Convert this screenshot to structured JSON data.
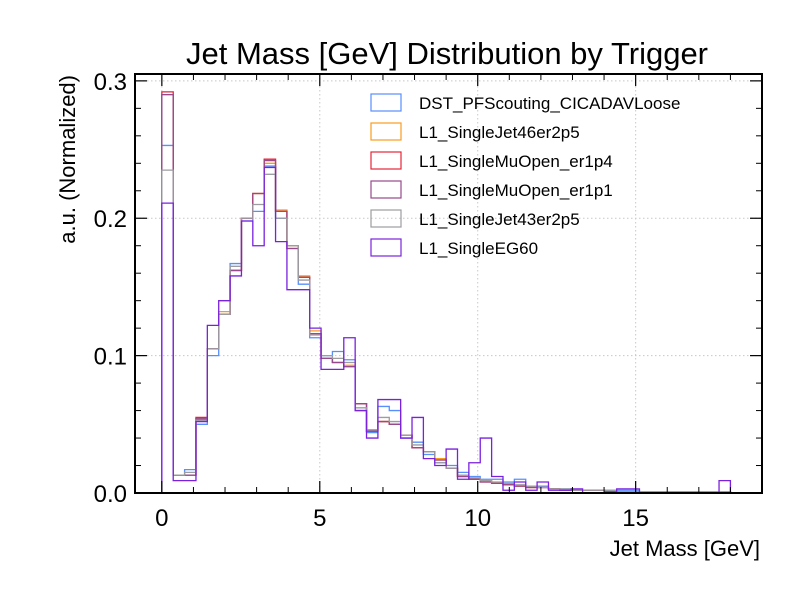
{
  "chart_data": {
    "type": "histogram-step",
    "title": "Jet Mass [GeV] Distribution by Trigger",
    "xlabel": "Jet Mass [GeV]",
    "ylabel": "a.u. (Normalized)",
    "xlim": [
      -0.85,
      19.0
    ],
    "ylim": [
      0.0,
      0.305
    ],
    "xticks": [
      0,
      5,
      10,
      15
    ],
    "xtick_labels": [
      "0",
      "5",
      "10",
      "15"
    ],
    "yticks": [
      0.0,
      0.1,
      0.2,
      0.3
    ],
    "ytick_labels": [
      "0.0",
      "0.1",
      "0.2",
      "0.3"
    ],
    "grid": true,
    "legend_position": "top-right",
    "bin_edges": [
      0.0,
      0.36,
      0.72,
      1.08,
      1.44,
      1.8,
      2.16,
      2.52,
      2.88,
      3.24,
      3.6,
      3.96,
      4.32,
      4.68,
      5.04,
      5.4,
      5.76,
      6.12,
      6.48,
      6.84,
      7.2,
      7.56,
      7.92,
      8.28,
      8.64,
      9.0,
      9.36,
      9.72,
      10.08,
      10.44,
      10.8,
      11.16,
      11.52,
      11.88,
      12.24,
      12.6,
      12.96,
      13.32,
      13.68,
      14.04,
      14.4,
      14.76,
      15.12,
      15.48,
      15.84,
      16.2,
      16.56,
      16.92,
      17.28,
      17.64,
      18.0
    ],
    "series": [
      {
        "name": "DST_PFScouting_CICADAVLoose",
        "color": "#5790fc",
        "values": [
          0.253,
          0.013,
          0.017,
          0.05,
          0.1,
          0.13,
          0.167,
          0.198,
          0.205,
          0.238,
          0.2,
          0.18,
          0.152,
          0.113,
          0.1,
          0.103,
          0.097,
          0.06,
          0.044,
          0.063,
          0.06,
          0.04,
          0.037,
          0.028,
          0.022,
          0.02,
          0.015,
          0.012,
          0.01,
          0.01,
          0.008,
          0.01,
          0.005,
          0.005,
          0.003,
          0.003,
          0.002,
          0.002,
          0.002,
          0.002,
          0.002,
          0.002,
          0.001,
          0.001,
          0.001,
          0.001,
          0.001,
          0.001,
          0.001,
          0.001
        ]
      },
      {
        "name": "L1_SingleJet46er2p5",
        "color": "#f89c20",
        "values": [
          0.29,
          0.013,
          0.013,
          0.054,
          0.105,
          0.132,
          0.162,
          0.2,
          0.218,
          0.24,
          0.206,
          0.18,
          0.158,
          0.118,
          0.098,
          0.095,
          0.093,
          0.065,
          0.045,
          0.052,
          0.05,
          0.042,
          0.033,
          0.03,
          0.025,
          0.018,
          0.012,
          0.01,
          0.009,
          0.007,
          0.006,
          0.005,
          0.004,
          0.004,
          0.003,
          0.002,
          0.002,
          0.002,
          0.002,
          0.001,
          0.001,
          0.001,
          0.001,
          0.001,
          0.001,
          0.001,
          0.001,
          0.001,
          0.001,
          0.001
        ]
      },
      {
        "name": "L1_SingleMuOpen_er1p4",
        "color": "#e42536",
        "values": [
          0.292,
          0.013,
          0.013,
          0.055,
          0.105,
          0.13,
          0.162,
          0.2,
          0.218,
          0.243,
          0.205,
          0.178,
          0.157,
          0.116,
          0.098,
          0.095,
          0.092,
          0.065,
          0.045,
          0.052,
          0.05,
          0.042,
          0.033,
          0.03,
          0.024,
          0.018,
          0.012,
          0.01,
          0.008,
          0.007,
          0.006,
          0.005,
          0.004,
          0.004,
          0.003,
          0.002,
          0.002,
          0.002,
          0.002,
          0.001,
          0.001,
          0.001,
          0.001,
          0.001,
          0.001,
          0.001,
          0.001,
          0.001,
          0.001,
          0.001
        ]
      },
      {
        "name": "L1_SingleMuOpen_er1p1",
        "color": "#964a8b",
        "values": [
          0.29,
          0.013,
          0.013,
          0.054,
          0.105,
          0.13,
          0.162,
          0.2,
          0.218,
          0.242,
          0.205,
          0.178,
          0.157,
          0.116,
          0.098,
          0.095,
          0.092,
          0.065,
          0.045,
          0.052,
          0.05,
          0.042,
          0.033,
          0.03,
          0.024,
          0.018,
          0.012,
          0.01,
          0.008,
          0.007,
          0.006,
          0.005,
          0.004,
          0.004,
          0.003,
          0.002,
          0.002,
          0.002,
          0.002,
          0.001,
          0.001,
          0.001,
          0.001,
          0.001,
          0.001,
          0.001,
          0.001,
          0.001,
          0.001,
          0.001
        ]
      },
      {
        "name": "L1_SingleJet43er2p5",
        "color": "#9c9ca1",
        "values": [
          0.235,
          0.013,
          0.015,
          0.053,
          0.105,
          0.13,
          0.165,
          0.2,
          0.21,
          0.232,
          0.2,
          0.18,
          0.155,
          0.115,
          0.1,
          0.098,
          0.095,
          0.062,
          0.046,
          0.055,
          0.052,
          0.042,
          0.035,
          0.03,
          0.022,
          0.018,
          0.013,
          0.011,
          0.009,
          0.008,
          0.007,
          0.006,
          0.005,
          0.004,
          0.003,
          0.003,
          0.002,
          0.002,
          0.002,
          0.002,
          0.001,
          0.001,
          0.001,
          0.001,
          0.001,
          0.001,
          0.001,
          0.001,
          0.001,
          0.001
        ]
      },
      {
        "name": "L1_SingleEG60",
        "color": "#7a21dd",
        "values": [
          0.211,
          0.009,
          0.009,
          0.052,
          0.122,
          0.14,
          0.158,
          0.198,
          0.18,
          0.237,
          0.183,
          0.148,
          0.148,
          0.12,
          0.09,
          0.09,
          0.113,
          0.06,
          0.04,
          0.068,
          0.068,
          0.04,
          0.055,
          0.025,
          0.02,
          0.032,
          0.01,
          0.022,
          0.04,
          0.012,
          0.002,
          0.008,
          0.002,
          0.008,
          0.002,
          0.002,
          0.003,
          0.0,
          0.0,
          0.0,
          0.003,
          0.003,
          0.0,
          0.0,
          0.0,
          0.0,
          0.0,
          0.0,
          0.0,
          0.009
        ]
      }
    ]
  }
}
